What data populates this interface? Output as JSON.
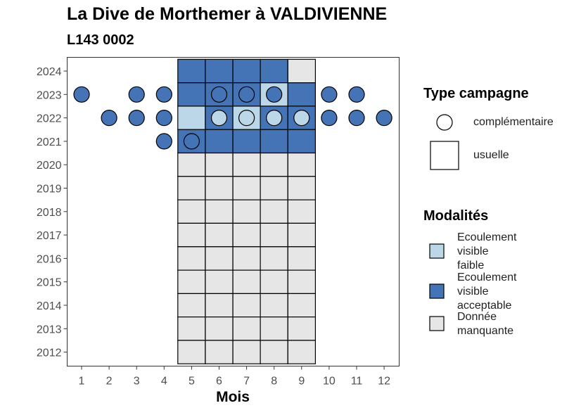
{
  "chart_data": {
    "type": "heatmap",
    "title": "La Dive de Morthemer à VALDIVIENNE",
    "subtitle": "L143 0002",
    "xlabel": "Mois",
    "ylabel": "",
    "x_ticks": [
      "1",
      "2",
      "3",
      "4",
      "5",
      "6",
      "7",
      "8",
      "9",
      "10",
      "11",
      "12"
    ],
    "y_ticks": [
      "2012",
      "2013",
      "2014",
      "2015",
      "2016",
      "2017",
      "2018",
      "2019",
      "2020",
      "2021",
      "2022",
      "2023",
      "2024"
    ],
    "grid": false,
    "legend_placement": "right",
    "colors": {
      "Ecoulement visible faible": "#bcd7e8",
      "Ecoulement visible acceptable": "#4473b6",
      "Donnée manquante": "#e6e6e6"
    },
    "legend": {
      "type_title": "Type campagne",
      "type_items": [
        "complémentaire",
        "usuelle"
      ],
      "mod_title": "Modalités",
      "mod_items": [
        "Ecoulement visible faible",
        "Ecoulement visible acceptable",
        "Donnée manquante"
      ],
      "mod_lines": [
        [
          "Ecoulement",
          "visible",
          "faible"
        ],
        [
          "Ecoulement",
          "visible",
          "acceptable"
        ],
        [
          "Donnée",
          "manquante"
        ]
      ]
    },
    "usuelle": [
      {
        "year": 2024,
        "values": {
          "5": "Ecoulement visible acceptable",
          "6": "Ecoulement visible acceptable",
          "7": "Ecoulement visible acceptable",
          "8": "Ecoulement visible acceptable",
          "9": "Donnée manquante"
        }
      },
      {
        "year": 2023,
        "values": {
          "5": "Ecoulement visible acceptable",
          "6": "Ecoulement visible acceptable",
          "7": "Ecoulement visible acceptable",
          "8": "Ecoulement visible faible",
          "9": "Ecoulement visible acceptable"
        }
      },
      {
        "year": 2022,
        "values": {
          "5": "Ecoulement visible faible",
          "6": "Ecoulement visible acceptable",
          "7": "Ecoulement visible faible",
          "8": "Ecoulement visible acceptable",
          "9": "Ecoulement visible acceptable"
        }
      },
      {
        "year": 2021,
        "values": {
          "5": "Ecoulement visible acceptable",
          "6": "Ecoulement visible acceptable",
          "7": "Ecoulement visible acceptable",
          "8": "Ecoulement visible acceptable",
          "9": "Ecoulement visible acceptable"
        }
      },
      {
        "year": 2020,
        "values": {
          "5": "Donnée manquante",
          "6": "Donnée manquante",
          "7": "Donnée manquante",
          "8": "Donnée manquante",
          "9": "Donnée manquante"
        }
      },
      {
        "year": 2019,
        "values": {
          "5": "Donnée manquante",
          "6": "Donnée manquante",
          "7": "Donnée manquante",
          "8": "Donnée manquante",
          "9": "Donnée manquante"
        }
      },
      {
        "year": 2018,
        "values": {
          "5": "Donnée manquante",
          "6": "Donnée manquante",
          "7": "Donnée manquante",
          "8": "Donnée manquante",
          "9": "Donnée manquante"
        }
      },
      {
        "year": 2017,
        "values": {
          "5": "Donnée manquante",
          "6": "Donnée manquante",
          "7": "Donnée manquante",
          "8": "Donnée manquante",
          "9": "Donnée manquante"
        }
      },
      {
        "year": 2016,
        "values": {
          "5": "Donnée manquante",
          "6": "Donnée manquante",
          "7": "Donnée manquante",
          "8": "Donnée manquante",
          "9": "Donnée manquante"
        }
      },
      {
        "year": 2015,
        "values": {
          "5": "Donnée manquante",
          "6": "Donnée manquante",
          "7": "Donnée manquante",
          "8": "Donnée manquante",
          "9": "Donnée manquante"
        }
      },
      {
        "year": 2014,
        "values": {
          "5": "Donnée manquante",
          "6": "Donnée manquante",
          "7": "Donnée manquante",
          "8": "Donnée manquante",
          "9": "Donnée manquante"
        }
      },
      {
        "year": 2013,
        "values": {
          "5": "Donnée manquante",
          "6": "Donnée manquante",
          "7": "Donnée manquante",
          "8": "Donnée manquante",
          "9": "Donnée manquante"
        }
      },
      {
        "year": 2012,
        "values": {
          "5": "Donnée manquante",
          "6": "Donnée manquante",
          "7": "Donnée manquante",
          "8": "Donnée manquante",
          "9": "Donnée manquante"
        }
      }
    ],
    "complementaire": [
      {
        "year": 2023,
        "month": 1,
        "value": "Ecoulement visible acceptable"
      },
      {
        "year": 2023,
        "month": 3,
        "value": "Ecoulement visible acceptable"
      },
      {
        "year": 2023,
        "month": 4,
        "value": "Ecoulement visible acceptable"
      },
      {
        "year": 2023,
        "month": 6,
        "value": "Ecoulement visible acceptable"
      },
      {
        "year": 2023,
        "month": 7,
        "value": "Ecoulement visible acceptable"
      },
      {
        "year": 2023,
        "month": 8,
        "value": "Ecoulement visible acceptable"
      },
      {
        "year": 2023,
        "month": 10,
        "value": "Ecoulement visible acceptable"
      },
      {
        "year": 2023,
        "month": 11,
        "value": "Ecoulement visible acceptable"
      },
      {
        "year": 2022,
        "month": 2,
        "value": "Ecoulement visible acceptable"
      },
      {
        "year": 2022,
        "month": 3,
        "value": "Ecoulement visible acceptable"
      },
      {
        "year": 2022,
        "month": 4,
        "value": "Ecoulement visible acceptable"
      },
      {
        "year": 2022,
        "month": 6,
        "value": "Ecoulement visible faible"
      },
      {
        "year": 2022,
        "month": 7,
        "value": "Ecoulement visible faible"
      },
      {
        "year": 2022,
        "month": 8,
        "value": "Ecoulement visible faible"
      },
      {
        "year": 2022,
        "month": 9,
        "value": "Ecoulement visible faible"
      },
      {
        "year": 2022,
        "month": 10,
        "value": "Ecoulement visible acceptable"
      },
      {
        "year": 2022,
        "month": 11,
        "value": "Ecoulement visible acceptable"
      },
      {
        "year": 2022,
        "month": 12,
        "value": "Ecoulement visible acceptable"
      },
      {
        "year": 2021,
        "month": 4,
        "value": "Ecoulement visible acceptable"
      },
      {
        "year": 2021,
        "month": 5,
        "value": "Ecoulement visible acceptable"
      }
    ]
  }
}
